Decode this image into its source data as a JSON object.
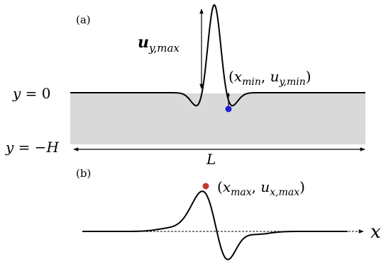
{
  "panel_a": {
    "panel_label": "(a)",
    "top_label": "y = 0",
    "top_label_parts": {
      "var": "y",
      "rest": " = 0"
    },
    "bottom_label_parts": {
      "var": "y",
      "eq": " = −",
      "h": "H"
    },
    "length_label": "L",
    "peak_label": {
      "base": "u",
      "sub": "y,max"
    },
    "min_label": {
      "open": "(",
      "x_base": "x",
      "x_sub": "min",
      "sep": ", ",
      "u_base": "u",
      "u_sub": "y,min",
      "close": ")"
    },
    "colors": {
      "slab": "#d9d9d9",
      "curve": "#000000",
      "min_point": "#1f1fd1"
    }
  },
  "panel_b": {
    "panel_label": "(b)",
    "axis_label": "x",
    "max_label": {
      "open": "(",
      "x_base": "x",
      "x_sub": "max",
      "sep": ", ",
      "u_base": "u",
      "u_sub": "x,max",
      "close": ")"
    },
    "colors": {
      "curve": "#000000",
      "axis": "#000000",
      "max_point": "#c0392b"
    }
  }
}
